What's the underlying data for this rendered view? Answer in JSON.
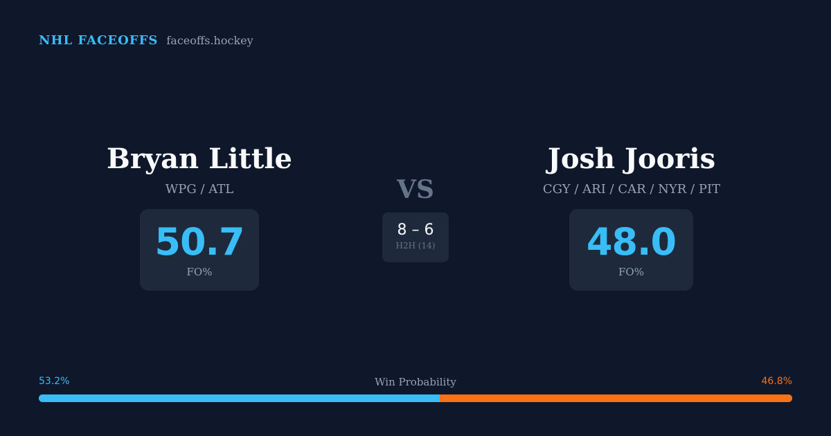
{
  "brand": {
    "name": "NHL FACEOFFS",
    "domain": "faceoffs.hockey"
  },
  "players": {
    "left": {
      "name": "Bryan Little",
      "teams": "WPG / ATL",
      "fo_value": "50.7",
      "fo_label": "FO%"
    },
    "right": {
      "name": "Josh Jooris",
      "teams": "CGY / ARI / CAR / NYR / PIT",
      "fo_value": "48.0",
      "fo_label": "FO%"
    }
  },
  "matchup": {
    "vs_label": "VS",
    "h2h_score": "8 – 6",
    "h2h_label": "H2H (14)"
  },
  "win_probability": {
    "title": "Win Probability",
    "left_label": "53.2%",
    "right_label": "46.8%",
    "left_fraction": 0.532,
    "right_fraction": 0.468
  },
  "colors": {
    "background": "#0f172a",
    "accent_left": "#38bdf8",
    "accent_right": "#f97316",
    "card": "#1e293b"
  }
}
